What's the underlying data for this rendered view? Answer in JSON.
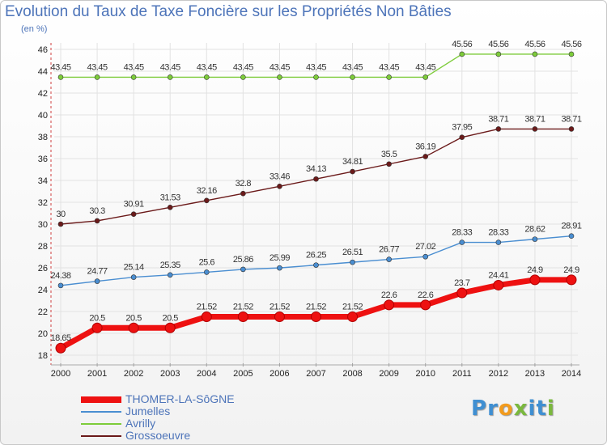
{
  "chart_data": {
    "type": "line",
    "title": "Evolution du Taux de Taxe Foncière sur les Propriétés Non Bâties",
    "subtitle": "(en %)",
    "x": [
      2000,
      2001,
      2002,
      2003,
      2004,
      2005,
      2006,
      2007,
      2008,
      2009,
      2010,
      2011,
      2012,
      2013,
      2014
    ],
    "ylim": [
      18,
      46
    ],
    "yticks": [
      18,
      20,
      22,
      24,
      26,
      28,
      30,
      32,
      34,
      36,
      38,
      40,
      42,
      44,
      46
    ],
    "grid": true,
    "legend_position": "bottom-left",
    "series": [
      {
        "name": "Avrilly",
        "color": "#7dcc3a",
        "values": [
          43.45,
          43.45,
          43.45,
          43.45,
          43.45,
          43.45,
          43.45,
          43.45,
          43.45,
          43.45,
          43.45,
          45.56,
          45.56,
          45.56,
          45.56
        ],
        "labels": [
          "43.45",
          "43.45",
          "43.45",
          "43.45",
          "43.45",
          "43.45",
          "43.45",
          "43.45",
          "43.45",
          "43.45",
          "43.45",
          "45.56",
          "45.56",
          "45.56",
          "45.56"
        ]
      },
      {
        "name": "Grossoeuvre",
        "color": "#6b1a1a",
        "values": [
          30,
          30.3,
          30.91,
          31.53,
          32.16,
          32.8,
          33.46,
          34.13,
          34.81,
          35.5,
          36.19,
          37.95,
          38.71,
          38.71,
          38.71
        ],
        "labels": [
          "30",
          "30.3",
          "30.91",
          "31.53",
          "32.16",
          "32.8",
          "33.46",
          "34.13",
          "34.81",
          "35.5",
          "36.19",
          "37.95",
          "38.71",
          "38.71",
          "38.71"
        ]
      },
      {
        "name": "Jumelles",
        "color": "#4a8ed1",
        "values": [
          24.38,
          24.77,
          25.14,
          25.35,
          25.6,
          25.86,
          25.99,
          26.25,
          26.51,
          26.77,
          27.02,
          28.33,
          28.33,
          28.62,
          28.91
        ],
        "labels": [
          "24.38",
          "24.77",
          "25.14",
          "25.35",
          "25.6",
          "25.86",
          "25.99",
          "26.25",
          "26.51",
          "26.77",
          "27.02",
          "28.33",
          "28.33",
          "28.62",
          "28.91"
        ]
      },
      {
        "name": "THOMER-LA-SôGNE",
        "color": "#ee1111",
        "values": [
          18.65,
          20.5,
          20.5,
          20.5,
          21.52,
          21.52,
          21.52,
          21.52,
          21.52,
          22.6,
          22.6,
          23.7,
          24.41,
          24.9,
          24.9
        ],
        "labels": [
          "18.65",
          "20.5",
          "20.5",
          "20.5",
          "21.52",
          "21.52",
          "21.52",
          "21.52",
          "21.52",
          "22.6",
          "22.6",
          "23.7",
          "24.41",
          "24.9",
          "24.9"
        ]
      }
    ]
  },
  "legend": {
    "items": [
      {
        "label": "THOMER-LA-SôGNE",
        "color": "#ee1111"
      },
      {
        "label": "Jumelles",
        "color": "#4a8ed1"
      },
      {
        "label": "Avrilly",
        "color": "#7dcc3a"
      },
      {
        "label": "Grossoeuvre",
        "color": "#6b1a1a"
      }
    ]
  },
  "logo": {
    "letters": [
      "P",
      "r",
      "o",
      "x",
      "i",
      "t",
      "i"
    ],
    "colors": [
      "#3f8fd2",
      "#3f8fd2",
      "#f29b1d",
      "#7ab83d",
      "#3f8fd2",
      "#3f8fd2",
      "#7ab83d"
    ]
  }
}
